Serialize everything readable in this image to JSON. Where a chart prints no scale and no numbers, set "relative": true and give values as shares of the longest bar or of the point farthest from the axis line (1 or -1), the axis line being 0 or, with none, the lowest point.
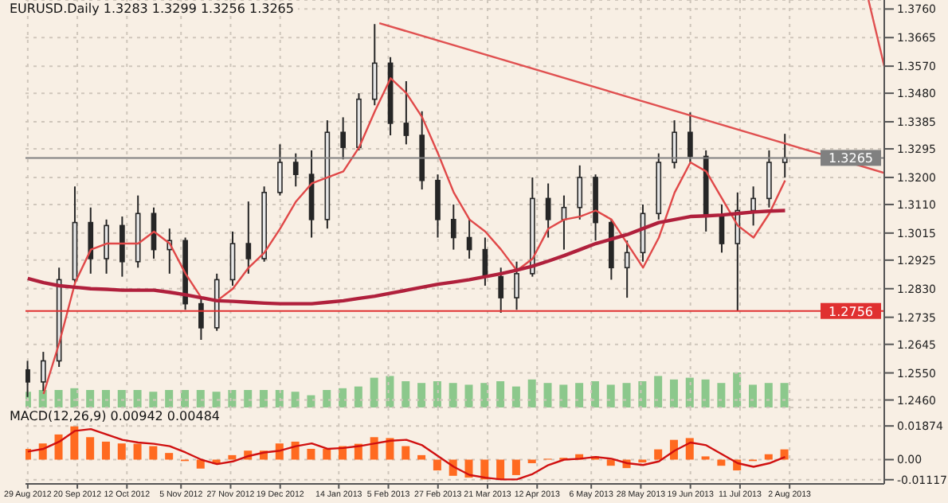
{
  "chart_data": [
    {
      "type": "candlestick",
      "title": "EURUSD.Daily 1.3283 1.3299 1.3256 1.3265",
      "x": [
        "2012-08-29",
        "2012-09-05",
        "2012-09-12",
        "2012-09-19",
        "2012-09-26",
        "2012-10-03",
        "2012-10-10",
        "2012-10-17",
        "2012-10-24",
        "2012-10-31",
        "2012-11-07",
        "2012-11-14",
        "2012-11-21",
        "2012-11-28",
        "2012-12-05",
        "2012-12-12",
        "2012-12-19",
        "2012-12-26",
        "2013-01-02",
        "2013-01-09",
        "2013-01-16",
        "2013-01-23",
        "2013-01-30",
        "2013-02-06",
        "2013-02-13",
        "2013-02-20",
        "2013-02-27",
        "2013-03-06",
        "2013-03-13",
        "2013-03-20",
        "2013-03-27",
        "2013-04-03",
        "2013-04-10",
        "2013-04-17",
        "2013-04-24",
        "2013-05-01",
        "2013-05-08",
        "2013-05-15",
        "2013-05-22",
        "2013-05-29",
        "2013-06-05",
        "2013-06-12",
        "2013-06-19",
        "2013-06-26",
        "2013-07-03",
        "2013-07-10",
        "2013-07-17",
        "2013-07-24",
        "2013-07-31"
      ],
      "series": [
        {
          "type": "candlestick",
          "color": "#262626",
          "ohlc": [
            [
              1.256,
              1.259,
              1.247,
              1.252
            ],
            [
              1.252,
              1.262,
              1.249,
              1.259
            ],
            [
              1.259,
              1.29,
              1.257,
              1.286
            ],
            [
              1.286,
              1.317,
              1.285,
              1.305
            ],
            [
              1.305,
              1.31,
              1.288,
              1.293
            ],
            [
              1.293,
              1.306,
              1.288,
              1.304
            ],
            [
              1.304,
              1.307,
              1.287,
              1.292
            ],
            [
              1.292,
              1.314,
              1.29,
              1.308
            ],
            [
              1.308,
              1.31,
              1.293,
              1.296
            ],
            [
              1.296,
              1.303,
              1.288,
              1.299
            ],
            [
              1.299,
              1.3,
              1.276,
              1.278
            ],
            [
              1.278,
              1.28,
              1.266,
              1.27
            ],
            [
              1.27,
              1.288,
              1.269,
              1.286
            ],
            [
              1.286,
              1.302,
              1.284,
              1.298
            ],
            [
              1.298,
              1.312,
              1.288,
              1.293
            ],
            [
              1.293,
              1.317,
              1.292,
              1.315
            ],
            [
              1.315,
              1.331,
              1.314,
              1.325
            ],
            [
              1.325,
              1.328,
              1.317,
              1.321
            ],
            [
              1.321,
              1.329,
              1.3,
              1.306
            ],
            [
              1.306,
              1.339,
              1.303,
              1.335
            ],
            [
              1.335,
              1.34,
              1.326,
              1.33
            ],
            [
              1.33,
              1.348,
              1.329,
              1.346
            ],
            [
              1.346,
              1.371,
              1.344,
              1.358
            ],
            [
              1.358,
              1.36,
              1.334,
              1.338
            ],
            [
              1.338,
              1.352,
              1.331,
              1.334
            ],
            [
              1.334,
              1.342,
              1.316,
              1.319
            ],
            [
              1.319,
              1.321,
              1.3,
              1.306
            ],
            [
              1.306,
              1.311,
              1.296,
              1.3
            ],
            [
              1.3,
              1.306,
              1.293,
              1.296
            ],
            [
              1.296,
              1.3,
              1.284,
              1.287
            ],
            [
              1.287,
              1.29,
              1.275,
              1.28
            ],
            [
              1.28,
              1.292,
              1.276,
              1.288
            ],
            [
              1.288,
              1.32,
              1.287,
              1.313
            ],
            [
              1.313,
              1.318,
              1.3,
              1.306
            ],
            [
              1.306,
              1.314,
              1.296,
              1.31
            ],
            [
              1.31,
              1.324,
              1.306,
              1.32
            ],
            [
              1.32,
              1.321,
              1.299,
              1.305
            ],
            [
              1.305,
              1.306,
              1.286,
              1.29
            ],
            [
              1.29,
              1.299,
              1.28,
              1.295
            ],
            [
              1.295,
              1.311,
              1.292,
              1.308
            ],
            [
              1.308,
              1.328,
              1.306,
              1.325
            ],
            [
              1.325,
              1.339,
              1.323,
              1.335
            ],
            [
              1.335,
              1.3416,
              1.325,
              1.327
            ],
            [
              1.327,
              1.329,
              1.302,
              1.307
            ],
            [
              1.307,
              1.311,
              1.295,
              1.298
            ],
            [
              1.298,
              1.315,
              1.2756,
              1.309
            ],
            [
              1.309,
              1.317,
              1.304,
              1.313
            ],
            [
              1.313,
              1.329,
              1.31,
              1.325
            ],
            [
              1.325,
              1.3345,
              1.32,
              1.3265
            ]
          ]
        },
        {
          "type": "line",
          "color": "#e04848",
          "values": [
            null,
            1.248,
            1.265,
            1.285,
            1.296,
            1.298,
            1.298,
            1.298,
            1.302,
            1.298,
            1.288,
            1.28,
            1.279,
            1.283,
            1.29,
            1.295,
            1.303,
            1.312,
            1.318,
            1.32,
            1.322,
            1.33,
            1.342,
            1.353,
            1.348,
            1.34,
            1.328,
            1.315,
            1.306,
            1.302,
            1.296,
            1.289,
            1.293,
            1.303,
            1.306,
            1.307,
            1.309,
            1.306,
            1.298,
            1.29,
            1.3,
            1.315,
            1.325,
            1.322,
            1.313,
            1.304,
            1.3,
            1.308,
            1.319
          ]
        },
        {
          "type": "line",
          "color": "#b0203c",
          "values": [
            1.2864,
            1.285,
            1.284,
            1.2835,
            1.283,
            1.2828,
            1.2825,
            1.2825,
            1.2825,
            1.2818,
            1.281,
            1.28,
            1.279,
            1.2788,
            1.2785,
            1.2782,
            1.278,
            1.278,
            1.278,
            1.2785,
            1.279,
            1.2798,
            1.2805,
            1.2815,
            1.2825,
            1.2835,
            1.2845,
            1.2852,
            1.286,
            1.287,
            1.288,
            1.2892,
            1.2905,
            1.2922,
            1.294,
            1.296,
            1.298,
            1.2995,
            1.301,
            1.303,
            1.305,
            1.306,
            1.307,
            1.3072,
            1.3075,
            1.308,
            1.3085,
            1.3088,
            1.309
          ]
        },
        {
          "type": "line",
          "color": "#e05050",
          "x": [
            "2013-02-01",
            "2013-09-13"
          ],
          "values": [
            1.3713,
            1.3215
          ]
        },
        {
          "type": "line",
          "color": "#e05050",
          "x": [
            "2013-09-06",
            "2013-09-13"
          ],
          "values": [
            1.379,
            1.357
          ]
        }
      ],
      "xlim": [
        "2012-08-28",
        "2013-09-13"
      ],
      "xticks": [
        {
          "value": "2012-08-29",
          "label": null
        },
        {
          "value": "2012-09-20",
          "label": null
        },
        {
          "value": "2012-10-12",
          "label": null
        },
        {
          "value": "2012-11-05",
          "label": null
        },
        {
          "value": "2012-11-27",
          "label": null
        },
        {
          "value": "2012-12-19",
          "label": null
        },
        {
          "value": "2013-01-14",
          "label": null
        },
        {
          "value": "2013-02-05",
          "label": null
        },
        {
          "value": "2013-02-27",
          "label": null
        },
        {
          "value": "2013-03-21",
          "label": null
        },
        {
          "value": "2013-04-12",
          "label": null
        },
        {
          "value": "2013-05-06",
          "label": null
        },
        {
          "value": "2013-05-28",
          "label": null
        },
        {
          "value": "2013-06-19",
          "label": null
        },
        {
          "value": "2013-07-11",
          "label": null
        },
        {
          "value": "2013-08-02",
          "label": null
        }
      ],
      "ylim": [
        1.2435,
        1.379
      ],
      "yticks": [
        {
          "value": 1.246,
          "label": "1.2460"
        },
        {
          "value": 1.255,
          "label": "1.2550"
        },
        {
          "value": 1.2645,
          "label": "1.2645"
        },
        {
          "value": 1.2735,
          "label": "1.2735"
        },
        {
          "value": 1.283,
          "label": "1.2830"
        },
        {
          "value": 1.2925,
          "label": "1.2925"
        },
        {
          "value": 1.3015,
          "label": "1.3015"
        },
        {
          "value": 1.311,
          "label": "1.3110"
        },
        {
          "value": 1.32,
          "label": "1.3200"
        },
        {
          "value": 1.3295,
          "label": "1.3295"
        },
        {
          "value": 1.3385,
          "label": "1.3385"
        },
        {
          "value": 1.348,
          "label": "1.3480"
        },
        {
          "value": 1.357,
          "label": "1.3570"
        },
        {
          "value": 1.3665,
          "label": "1.3665"
        },
        {
          "value": 1.376,
          "label": "1.3760"
        }
      ],
      "tick_labels": "y",
      "grid": true,
      "ref_lines": [
        {
          "axis": "y",
          "value": 1.2756,
          "label": "1.2756",
          "color": "#e03030"
        },
        {
          "axis": "y",
          "value": 1.3265,
          "label": "1.3265",
          "color": "#808080"
        }
      ]
    },
    {
      "type": "bar",
      "relative": true,
      "color": "#8cc88c",
      "x": [
        "2012-08-29",
        "2012-09-05",
        "2012-09-12",
        "2012-09-19",
        "2012-09-26",
        "2012-10-03",
        "2012-10-10",
        "2012-10-17",
        "2012-10-24",
        "2012-10-31",
        "2012-11-07",
        "2012-11-14",
        "2012-11-21",
        "2012-11-28",
        "2012-12-05",
        "2012-12-12",
        "2012-12-19",
        "2012-12-26",
        "2013-01-02",
        "2013-01-09",
        "2013-01-16",
        "2013-01-23",
        "2013-01-30",
        "2013-02-06",
        "2013-02-13",
        "2013-02-20",
        "2013-02-27",
        "2013-03-06",
        "2013-03-13",
        "2013-03-20",
        "2013-03-27",
        "2013-04-03",
        "2013-04-10",
        "2013-04-17",
        "2013-04-24",
        "2013-05-01",
        "2013-05-08",
        "2013-05-15",
        "2013-05-22",
        "2013-05-29",
        "2013-06-05",
        "2013-06-12",
        "2013-06-19",
        "2013-06-26",
        "2013-07-03",
        "2013-07-10",
        "2013-07-17",
        "2013-07-24",
        "2013-07-31"
      ],
      "values": [
        0.45,
        0.5,
        0.5,
        0.55,
        0.5,
        0.5,
        0.5,
        0.5,
        0.45,
        0.5,
        0.5,
        0.5,
        0.45,
        0.5,
        0.5,
        0.5,
        0.5,
        0.45,
        0.35,
        0.5,
        0.55,
        0.6,
        0.85,
        0.9,
        0.75,
        0.7,
        0.75,
        0.7,
        0.65,
        0.7,
        0.75,
        0.6,
        0.8,
        0.7,
        0.65,
        0.7,
        0.75,
        0.65,
        0.7,
        0.75,
        0.9,
        0.8,
        0.85,
        0.8,
        0.7,
        1,
        0.65,
        0.7,
        0.7
      ],
      "xlim": [
        "2012-08-28",
        "2013-09-13"
      ],
      "tick_labels": false
    },
    {
      "type": "bar",
      "title": "MACD(12,26,9) 0.00942 0.00484",
      "x": [
        "2012-08-29",
        "2012-09-05",
        "2012-09-12",
        "2012-09-19",
        "2012-09-26",
        "2012-10-03",
        "2012-10-10",
        "2012-10-17",
        "2012-10-24",
        "2012-10-31",
        "2012-11-07",
        "2012-11-14",
        "2012-11-21",
        "2012-11-28",
        "2012-12-05",
        "2012-12-12",
        "2012-12-19",
        "2012-12-26",
        "2013-01-02",
        "2013-01-09",
        "2013-01-16",
        "2013-01-23",
        "2013-01-30",
        "2013-02-06",
        "2013-02-13",
        "2013-02-20",
        "2013-02-27",
        "2013-03-06",
        "2013-03-13",
        "2013-03-20",
        "2013-03-27",
        "2013-04-03",
        "2013-04-10",
        "2013-04-17",
        "2013-04-24",
        "2013-05-01",
        "2013-05-08",
        "2013-05-15",
        "2013-05-22",
        "2013-05-29",
        "2013-06-05",
        "2013-06-12",
        "2013-06-19",
        "2013-06-26",
        "2013-07-03",
        "2013-07-10",
        "2013-07-17",
        "2013-07-24",
        "2013-07-31"
      ],
      "series": [
        {
          "type": "bar",
          "color": "#ff6a20",
          "values": [
            0.006,
            0.009,
            0.014,
            0.0185,
            0.0125,
            0.01,
            0.009,
            0.0088,
            0.0075,
            0.0037,
            -0.0008,
            -0.005,
            -0.0025,
            0.0025,
            0.005,
            0.005,
            0.009,
            0.01,
            0.006,
            0.006,
            0.0075,
            0.0088,
            0.0125,
            0.012,
            0.0075,
            0.0025,
            -0.006,
            -0.009,
            -0.01,
            -0.011,
            -0.011,
            -0.0086,
            -0.002,
            0.0005,
            0.001,
            0.003,
            0.0018,
            -0.0034,
            -0.0047,
            -0.0016,
            0.0057,
            0.011,
            0.012,
            0.0018,
            -0.0034,
            -0.006,
            -0.0008,
            0.003,
            0.0057
          ]
        },
        {
          "type": "line",
          "color": "#d01010",
          "values": [
            0.0045,
            0.006,
            0.01,
            0.016,
            0.017,
            0.014,
            0.011,
            0.0095,
            0.0088,
            0.0075,
            0.004,
            0.0,
            -0.0025,
            -0.001,
            0.002,
            0.004,
            0.005,
            0.0075,
            0.009,
            0.006,
            0.0065,
            0.0075,
            0.009,
            0.0105,
            0.011,
            0.008,
            0.002,
            -0.004,
            -0.0085,
            -0.01,
            -0.011,
            -0.011,
            -0.008,
            -0.003,
            0.0,
            0.0005,
            0.0015,
            0.0005,
            -0.002,
            -0.003,
            -0.001,
            0.005,
            0.0095,
            0.008,
            0.003,
            -0.002,
            -0.004,
            -0.002,
            0.0015
          ]
        }
      ],
      "xlim": [
        "2012-08-28",
        "2013-09-13"
      ],
      "xticks": [
        {
          "value": "2012-08-29",
          "label": "29 Aug 2012"
        },
        {
          "value": "2012-09-20",
          "label": "20 Sep 2012"
        },
        {
          "value": "2012-10-12",
          "label": "12 Oct 2012"
        },
        {
          "value": "2012-11-05",
          "label": "5 Nov 2012"
        },
        {
          "value": "2012-11-27",
          "label": "27 Nov 2012"
        },
        {
          "value": "2012-12-19",
          "label": "19 Dec 2012"
        },
        {
          "value": "2013-01-14",
          "label": "14 Jan 2013"
        },
        {
          "value": "2013-02-05",
          "label": "5 Feb 2013"
        },
        {
          "value": "2013-02-27",
          "label": "27 Feb 2013"
        },
        {
          "value": "2013-03-21",
          "label": "21 Mar 2013"
        },
        {
          "value": "2013-04-12",
          "label": "12 Apr 2013"
        },
        {
          "value": "2013-05-06",
          "label": "6 May 2013"
        },
        {
          "value": "2013-05-28",
          "label": "28 May 2013"
        },
        {
          "value": "2013-06-19",
          "label": "19 Jun 2013"
        },
        {
          "value": "2013-07-11",
          "label": "11 Jul 2013"
        },
        {
          "value": "2013-08-02",
          "label": "2 Aug 2013"
        }
      ],
      "ylim": [
        -0.0135,
        0.029
      ],
      "yticks": [
        {
          "value": -0.01117,
          "label": "-0.01117"
        },
        {
          "value": 0,
          "label": "0.00"
        },
        {
          "value": 0.01874,
          "label": "0.01874"
        }
      ],
      "grid": true
    }
  ]
}
